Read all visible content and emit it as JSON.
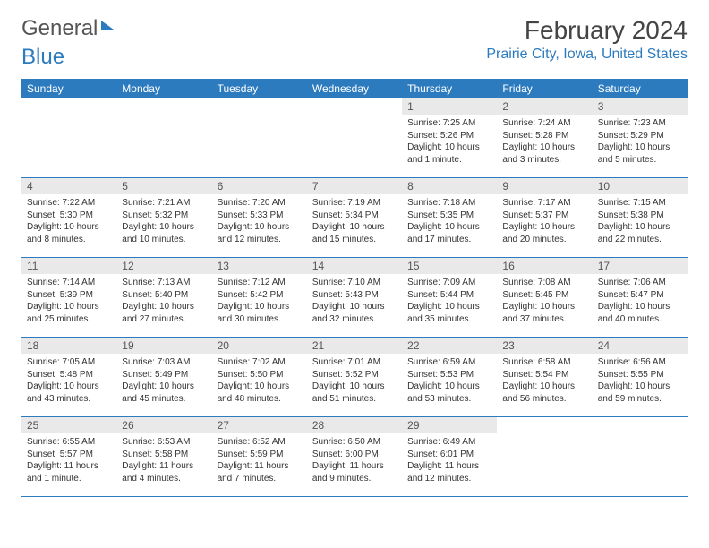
{
  "logo": {
    "part1": "General",
    "part2": "Blue"
  },
  "title": "February 2024",
  "location": "Prairie City, Iowa, United States",
  "colors": {
    "header_bg": "#2d7bbf",
    "header_text": "#ffffff",
    "daynum_bg": "#e9e9e9",
    "text": "#333333",
    "divider": "#2d7bbf",
    "background": "#ffffff"
  },
  "weekday_labels": [
    "Sunday",
    "Monday",
    "Tuesday",
    "Wednesday",
    "Thursday",
    "Friday",
    "Saturday"
  ],
  "weeks": [
    [
      {
        "day": "",
        "sunrise": "",
        "sunset": "",
        "daylight": ""
      },
      {
        "day": "",
        "sunrise": "",
        "sunset": "",
        "daylight": ""
      },
      {
        "day": "",
        "sunrise": "",
        "sunset": "",
        "daylight": ""
      },
      {
        "day": "",
        "sunrise": "",
        "sunset": "",
        "daylight": ""
      },
      {
        "day": "1",
        "sunrise": "Sunrise: 7:25 AM",
        "sunset": "Sunset: 5:26 PM",
        "daylight": "Daylight: 10 hours and 1 minute."
      },
      {
        "day": "2",
        "sunrise": "Sunrise: 7:24 AM",
        "sunset": "Sunset: 5:28 PM",
        "daylight": "Daylight: 10 hours and 3 minutes."
      },
      {
        "day": "3",
        "sunrise": "Sunrise: 7:23 AM",
        "sunset": "Sunset: 5:29 PM",
        "daylight": "Daylight: 10 hours and 5 minutes."
      }
    ],
    [
      {
        "day": "4",
        "sunrise": "Sunrise: 7:22 AM",
        "sunset": "Sunset: 5:30 PM",
        "daylight": "Daylight: 10 hours and 8 minutes."
      },
      {
        "day": "5",
        "sunrise": "Sunrise: 7:21 AM",
        "sunset": "Sunset: 5:32 PM",
        "daylight": "Daylight: 10 hours and 10 minutes."
      },
      {
        "day": "6",
        "sunrise": "Sunrise: 7:20 AM",
        "sunset": "Sunset: 5:33 PM",
        "daylight": "Daylight: 10 hours and 12 minutes."
      },
      {
        "day": "7",
        "sunrise": "Sunrise: 7:19 AM",
        "sunset": "Sunset: 5:34 PM",
        "daylight": "Daylight: 10 hours and 15 minutes."
      },
      {
        "day": "8",
        "sunrise": "Sunrise: 7:18 AM",
        "sunset": "Sunset: 5:35 PM",
        "daylight": "Daylight: 10 hours and 17 minutes."
      },
      {
        "day": "9",
        "sunrise": "Sunrise: 7:17 AM",
        "sunset": "Sunset: 5:37 PM",
        "daylight": "Daylight: 10 hours and 20 minutes."
      },
      {
        "day": "10",
        "sunrise": "Sunrise: 7:15 AM",
        "sunset": "Sunset: 5:38 PM",
        "daylight": "Daylight: 10 hours and 22 minutes."
      }
    ],
    [
      {
        "day": "11",
        "sunrise": "Sunrise: 7:14 AM",
        "sunset": "Sunset: 5:39 PM",
        "daylight": "Daylight: 10 hours and 25 minutes."
      },
      {
        "day": "12",
        "sunrise": "Sunrise: 7:13 AM",
        "sunset": "Sunset: 5:40 PM",
        "daylight": "Daylight: 10 hours and 27 minutes."
      },
      {
        "day": "13",
        "sunrise": "Sunrise: 7:12 AM",
        "sunset": "Sunset: 5:42 PM",
        "daylight": "Daylight: 10 hours and 30 minutes."
      },
      {
        "day": "14",
        "sunrise": "Sunrise: 7:10 AM",
        "sunset": "Sunset: 5:43 PM",
        "daylight": "Daylight: 10 hours and 32 minutes."
      },
      {
        "day": "15",
        "sunrise": "Sunrise: 7:09 AM",
        "sunset": "Sunset: 5:44 PM",
        "daylight": "Daylight: 10 hours and 35 minutes."
      },
      {
        "day": "16",
        "sunrise": "Sunrise: 7:08 AM",
        "sunset": "Sunset: 5:45 PM",
        "daylight": "Daylight: 10 hours and 37 minutes."
      },
      {
        "day": "17",
        "sunrise": "Sunrise: 7:06 AM",
        "sunset": "Sunset: 5:47 PM",
        "daylight": "Daylight: 10 hours and 40 minutes."
      }
    ],
    [
      {
        "day": "18",
        "sunrise": "Sunrise: 7:05 AM",
        "sunset": "Sunset: 5:48 PM",
        "daylight": "Daylight: 10 hours and 43 minutes."
      },
      {
        "day": "19",
        "sunrise": "Sunrise: 7:03 AM",
        "sunset": "Sunset: 5:49 PM",
        "daylight": "Daylight: 10 hours and 45 minutes."
      },
      {
        "day": "20",
        "sunrise": "Sunrise: 7:02 AM",
        "sunset": "Sunset: 5:50 PM",
        "daylight": "Daylight: 10 hours and 48 minutes."
      },
      {
        "day": "21",
        "sunrise": "Sunrise: 7:01 AM",
        "sunset": "Sunset: 5:52 PM",
        "daylight": "Daylight: 10 hours and 51 minutes."
      },
      {
        "day": "22",
        "sunrise": "Sunrise: 6:59 AM",
        "sunset": "Sunset: 5:53 PM",
        "daylight": "Daylight: 10 hours and 53 minutes."
      },
      {
        "day": "23",
        "sunrise": "Sunrise: 6:58 AM",
        "sunset": "Sunset: 5:54 PM",
        "daylight": "Daylight: 10 hours and 56 minutes."
      },
      {
        "day": "24",
        "sunrise": "Sunrise: 6:56 AM",
        "sunset": "Sunset: 5:55 PM",
        "daylight": "Daylight: 10 hours and 59 minutes."
      }
    ],
    [
      {
        "day": "25",
        "sunrise": "Sunrise: 6:55 AM",
        "sunset": "Sunset: 5:57 PM",
        "daylight": "Daylight: 11 hours and 1 minute."
      },
      {
        "day": "26",
        "sunrise": "Sunrise: 6:53 AM",
        "sunset": "Sunset: 5:58 PM",
        "daylight": "Daylight: 11 hours and 4 minutes."
      },
      {
        "day": "27",
        "sunrise": "Sunrise: 6:52 AM",
        "sunset": "Sunset: 5:59 PM",
        "daylight": "Daylight: 11 hours and 7 minutes."
      },
      {
        "day": "28",
        "sunrise": "Sunrise: 6:50 AM",
        "sunset": "Sunset: 6:00 PM",
        "daylight": "Daylight: 11 hours and 9 minutes."
      },
      {
        "day": "29",
        "sunrise": "Sunrise: 6:49 AM",
        "sunset": "Sunset: 6:01 PM",
        "daylight": "Daylight: 11 hours and 12 minutes."
      },
      {
        "day": "",
        "sunrise": "",
        "sunset": "",
        "daylight": ""
      },
      {
        "day": "",
        "sunrise": "",
        "sunset": "",
        "daylight": ""
      }
    ]
  ]
}
